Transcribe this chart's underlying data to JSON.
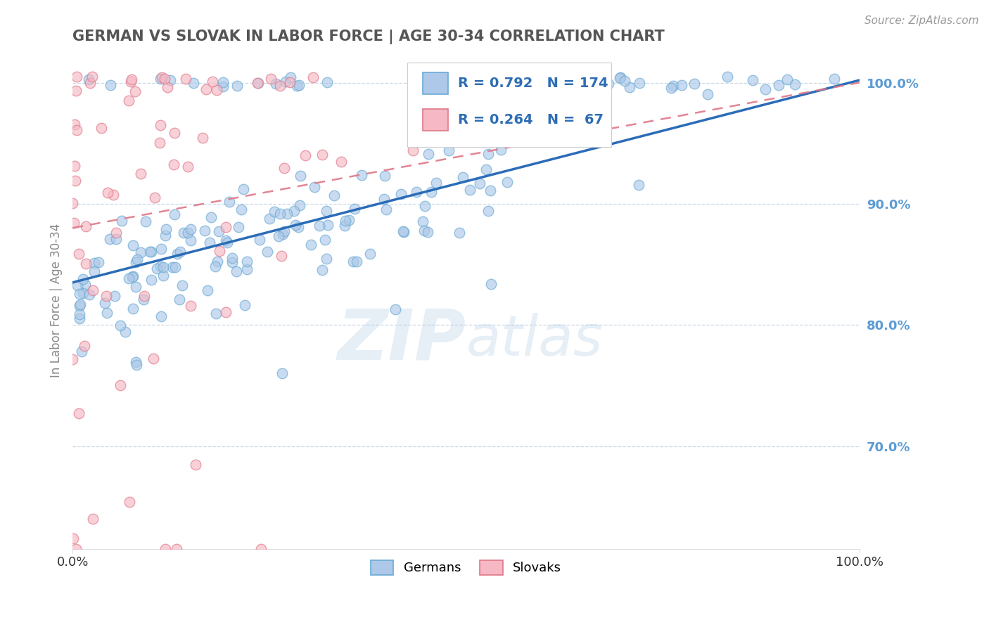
{
  "title": "GERMAN VS SLOVAK IN LABOR FORCE | AGE 30-34 CORRELATION CHART",
  "source_text": "Source: ZipAtlas.com",
  "ylabel": "In Labor Force | Age 30-34",
  "xlim": [
    0.0,
    1.0
  ],
  "ylim": [
    0.615,
    1.025
  ],
  "ytick_vals": [
    0.7,
    0.8,
    0.9,
    1.0
  ],
  "ytick_labels": [
    "70.0%",
    "80.0%",
    "90.0%",
    "100.0%"
  ],
  "xtick_vals": [
    0.0,
    1.0
  ],
  "xtick_labels": [
    "0.0%",
    "100.0%"
  ],
  "german_color": "#adc8e8",
  "german_edge_color": "#6aaad4",
  "slovak_color": "#f5b8c4",
  "slovak_edge_color": "#e07888",
  "trend_german_color": "#2b6cb8",
  "trend_slovak_color": "#e07888",
  "R_german": 0.792,
  "N_german": 174,
  "R_slovak": 0.264,
  "N_slovak": 67,
  "watermark_zip": "ZIP",
  "watermark_atlas": "atlas",
  "background_color": "#ffffff",
  "grid_color": "#c8d8e8",
  "title_color": "#555555",
  "axis_tick_color": "#5b9bd5",
  "legend_R_color": "#2e6db4",
  "legend_label_color": "#333333",
  "source_color": "#999999"
}
